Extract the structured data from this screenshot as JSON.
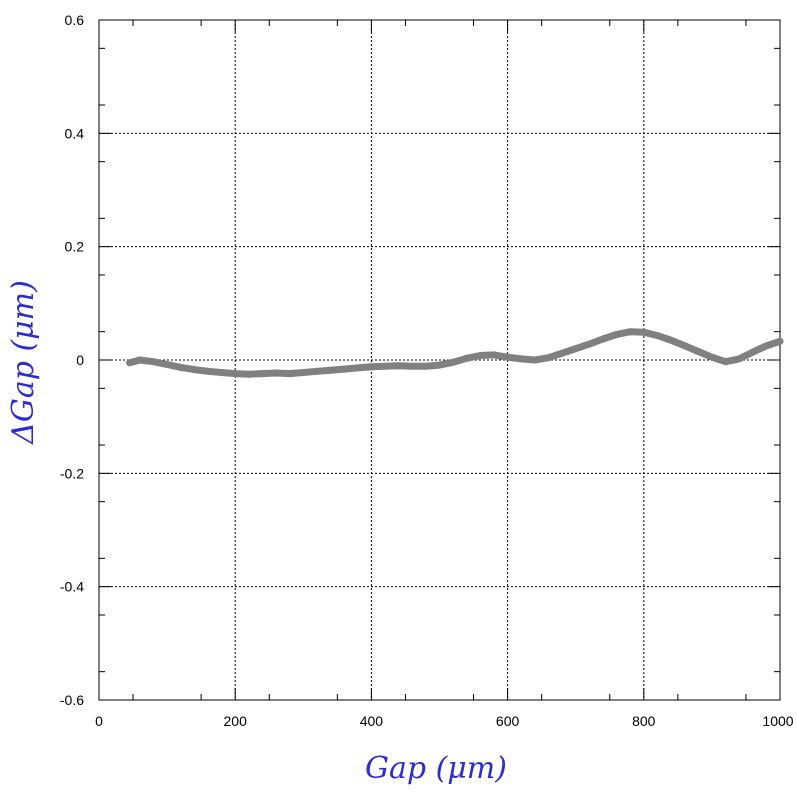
{
  "chart_data": {
    "type": "line",
    "xlabel": "Gap  (μm)",
    "ylabel": "ΔGap  (μm)",
    "xlim": [
      0,
      1000
    ],
    "ylim": [
      -0.6,
      0.6
    ],
    "x_ticks": [
      "0",
      "200",
      "400",
      "600",
      "800",
      "1000"
    ],
    "y_ticks": [
      "-0.6",
      "-0.4",
      "-0.2",
      "0",
      "0.2",
      "0.4",
      "0.6"
    ],
    "grid": true,
    "series": [
      {
        "color": "#808080",
        "x": [
          45,
          60,
          80,
          100,
          120,
          140,
          160,
          180,
          200,
          220,
          240,
          260,
          280,
          300,
          320,
          340,
          360,
          380,
          400,
          420,
          440,
          460,
          480,
          500,
          520,
          540,
          560,
          580,
          600,
          620,
          640,
          660,
          680,
          700,
          720,
          740,
          760,
          780,
          800,
          820,
          840,
          860,
          880,
          900,
          920,
          940,
          960,
          980,
          1000
        ],
        "values": [
          -0.005,
          0.0,
          -0.003,
          -0.008,
          -0.013,
          -0.017,
          -0.02,
          -0.022,
          -0.024,
          -0.025,
          -0.024,
          -0.023,
          -0.024,
          -0.022,
          -0.02,
          -0.018,
          -0.016,
          -0.014,
          -0.012,
          -0.011,
          -0.01,
          -0.011,
          -0.011,
          -0.009,
          -0.004,
          0.003,
          0.008,
          0.009,
          0.005,
          0.002,
          0.0,
          0.004,
          0.012,
          0.02,
          0.028,
          0.037,
          0.045,
          0.05,
          0.049,
          0.043,
          0.035,
          0.025,
          0.015,
          0.005,
          -0.003,
          0.002,
          0.014,
          0.025,
          0.033
        ]
      }
    ]
  }
}
